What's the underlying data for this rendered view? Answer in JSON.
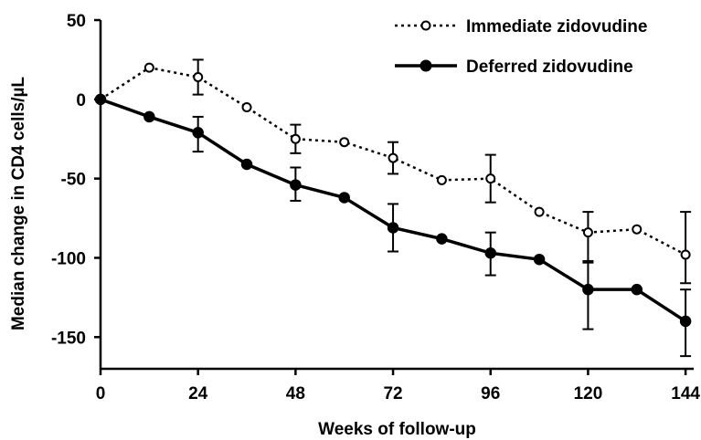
{
  "chart_data": {
    "type": "line",
    "title": "",
    "xlabel": "Weeks of follow-up",
    "ylabel": "Median change in CD4 cells/µL",
    "xlim": [
      0,
      146
    ],
    "ylim": [
      -170,
      50
    ],
    "x_ticks": [
      0,
      24,
      48,
      72,
      96,
      120,
      144
    ],
    "x_tick_labels": [
      "0",
      "24",
      "48",
      "72",
      "96",
      "120",
      "144"
    ],
    "y_ticks": [
      50,
      0,
      -50,
      -100,
      -150
    ],
    "y_tick_labels": [
      "50",
      "0",
      "-50",
      "-100",
      "-150"
    ],
    "grid": false,
    "legend_position": "top-right",
    "series": [
      {
        "name": "Immediate zidovudine",
        "style": "dotted",
        "marker": "open-circle",
        "color": "#000000",
        "x": [
          0,
          12,
          24,
          36,
          48,
          60,
          72,
          84,
          96,
          108,
          120,
          132,
          144
        ],
        "y": [
          0,
          20,
          14,
          -5,
          -25,
          -27,
          -37,
          -51,
          -50,
          -71,
          -84,
          -82,
          -98
        ],
        "error_bars": [
          {
            "x": 24,
            "low": 3,
            "high": 25
          },
          {
            "x": 48,
            "low": -34,
            "high": -16
          },
          {
            "x": 72,
            "low": -47,
            "high": -27
          },
          {
            "x": 96,
            "low": -65,
            "high": -35
          },
          {
            "x": 120,
            "low": -102,
            "high": -71
          },
          {
            "x": 144,
            "low": -116,
            "high": -71
          }
        ]
      },
      {
        "name": "Deferred zidovudine",
        "style": "solid",
        "marker": "filled-circle",
        "color": "#000000",
        "x": [
          0,
          12,
          24,
          36,
          48,
          60,
          72,
          84,
          96,
          108,
          120,
          132,
          144
        ],
        "y": [
          0,
          -11,
          -21,
          -41,
          -54,
          -62,
          -81,
          -88,
          -97,
          -101,
          -120,
          -120,
          -140
        ],
        "error_bars": [
          {
            "x": 24,
            "low": -33,
            "high": -11
          },
          {
            "x": 48,
            "low": -64,
            "high": -43
          },
          {
            "x": 72,
            "low": -96,
            "high": -66
          },
          {
            "x": 96,
            "low": -111,
            "high": -84
          },
          {
            "x": 120,
            "low": -145,
            "high": -103
          },
          {
            "x": 144,
            "low": -162,
            "high": -120
          }
        ]
      }
    ]
  }
}
